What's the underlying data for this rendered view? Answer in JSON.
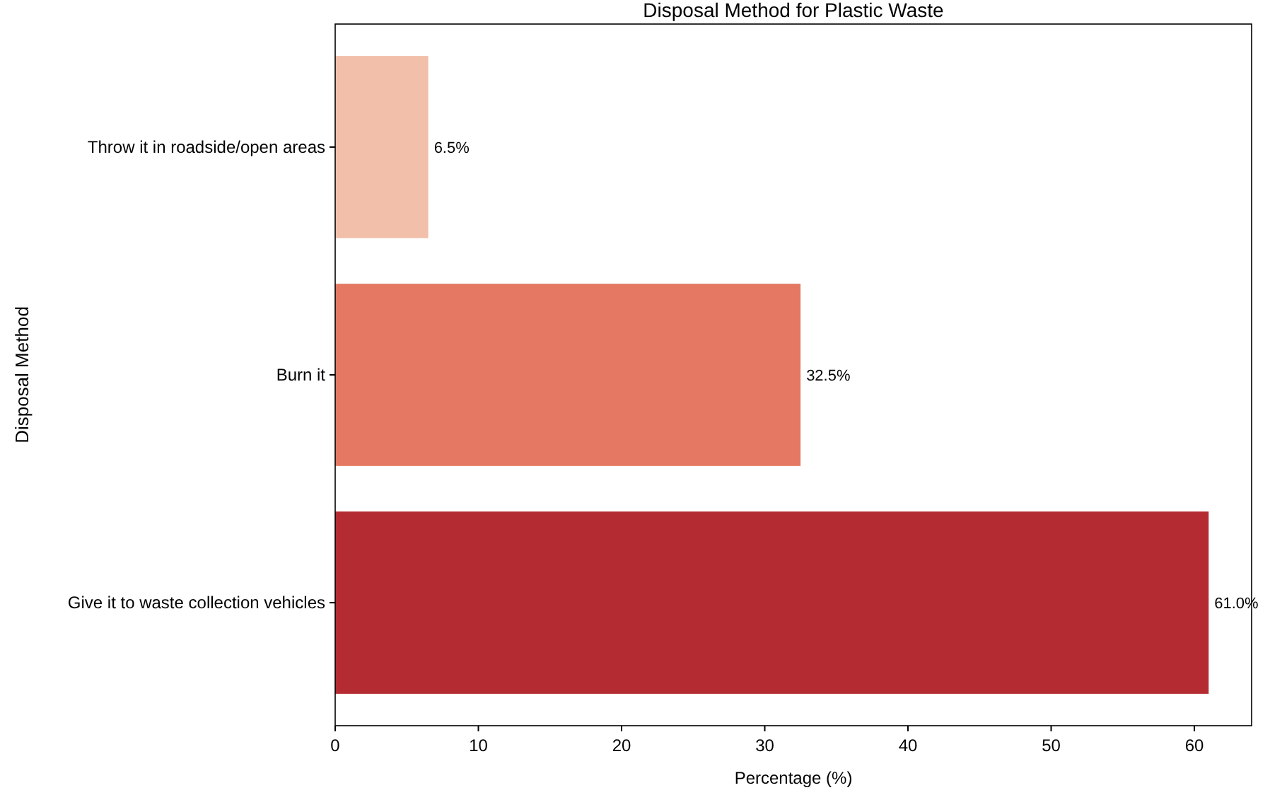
{
  "chart_data": {
    "type": "bar",
    "orientation": "horizontal",
    "title": "Disposal Method for Plastic Waste",
    "xlabel": "Percentage (%)",
    "ylabel": "Disposal Method",
    "categories": [
      "Throw it in roadside/open areas",
      "Burn it",
      "Give it to waste collection vehicles"
    ],
    "values": [
      6.5,
      32.5,
      61.0
    ],
    "colors": [
      "#f2c0aa",
      "#e57862",
      "#b42c31"
    ],
    "value_labels": [
      "6.5%",
      "32.5%",
      "61.0%"
    ],
    "xlim": [
      0,
      64
    ],
    "xticks": [
      0,
      10,
      20,
      30,
      40,
      50,
      60
    ],
    "grid": false
  }
}
